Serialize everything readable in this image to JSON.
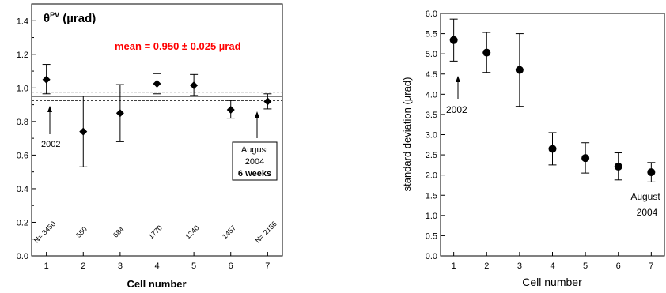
{
  "chart_data": [
    {
      "type": "scatter",
      "title": "θ",
      "title_superscript": "PV",
      "title_unit": " (µrad)",
      "xlabel": "Cell number",
      "ylabel": "",
      "xlim": [
        0.6,
        7.4
      ],
      "ylim": [
        0,
        1.5
      ],
      "x_ticks": [
        1,
        2,
        3,
        4,
        5,
        6,
        7
      ],
      "y_ticks": [
        0.0,
        0.2,
        0.4,
        0.6,
        0.8,
        1.0,
        1.2,
        1.4
      ],
      "y_tick_labels": [
        "0.0",
        "0.2",
        "0.4",
        "0.6",
        "0.8",
        "1.0",
        "1.2",
        "1.4"
      ],
      "grid": false,
      "marker": "diamond",
      "series": [
        {
          "x": [
            1,
            2,
            3,
            4,
            5,
            6,
            7
          ],
          "y": [
            1.05,
            0.74,
            0.85,
            1.025,
            1.015,
            0.87,
            0.92
          ],
          "err_low": [
            0.965,
            0.53,
            0.68,
            0.965,
            0.955,
            0.82,
            0.875
          ],
          "err_high": [
            1.14,
            0.95,
            1.02,
            1.085,
            1.08,
            0.925,
            0.965
          ]
        }
      ],
      "mean_line": {
        "value": 0.95,
        "band_low": 0.925,
        "band_high": 0.975
      },
      "mean_text": "mean = 0.950 ± 0.025 µrad",
      "mean_text_color": "#ff0000",
      "n_labels": [
        {
          "x": 1,
          "text": "N= 3450"
        },
        {
          "x": 2,
          "text": "550"
        },
        {
          "x": 3,
          "text": "684"
        },
        {
          "x": 4,
          "text": "1770"
        },
        {
          "x": 5,
          "text": "1240"
        },
        {
          "x": 6,
          "text": "1457"
        },
        {
          "x": 7,
          "text": "N= 2156"
        }
      ],
      "annotations": [
        {
          "text": "2002",
          "x": 1
        },
        {
          "lines": [
            "August",
            "2004",
            "6 weeks"
          ],
          "x": 7
        }
      ]
    },
    {
      "type": "scatter",
      "title": "",
      "xlabel": "Cell number",
      "ylabel": "standard deviation (µrad)",
      "xlim": [
        0.6,
        7.4
      ],
      "ylim": [
        0,
        6
      ],
      "x_ticks": [
        1,
        2,
        3,
        4,
        5,
        6,
        7
      ],
      "y_ticks": [
        0.0,
        0.5,
        1.0,
        1.5,
        2.0,
        2.5,
        3.0,
        3.5,
        4.0,
        4.5,
        5.0,
        5.5,
        6.0
      ],
      "y_tick_labels": [
        "0.0",
        "0.5",
        "1.0",
        "1.5",
        "2.0",
        "2.5",
        "3.0",
        "3.5",
        "4.0",
        "4.5",
        "5.0",
        "5.5",
        "6.0"
      ],
      "grid": false,
      "marker": "circle",
      "series": [
        {
          "x": [
            1,
            2,
            3,
            4,
            5,
            6,
            7
          ],
          "y": [
            5.34,
            5.03,
            4.6,
            2.65,
            2.42,
            2.21,
            2.07
          ],
          "err_low": [
            4.82,
            4.54,
            3.7,
            2.25,
            2.05,
            1.88,
            1.83
          ],
          "err_high": [
            5.86,
            5.53,
            5.5,
            3.05,
            2.8,
            2.55,
            2.31
          ]
        }
      ],
      "annotations": [
        {
          "text": "2002",
          "x": 1
        },
        {
          "lines": [
            "August",
            "2004"
          ],
          "x": 7
        }
      ]
    }
  ]
}
